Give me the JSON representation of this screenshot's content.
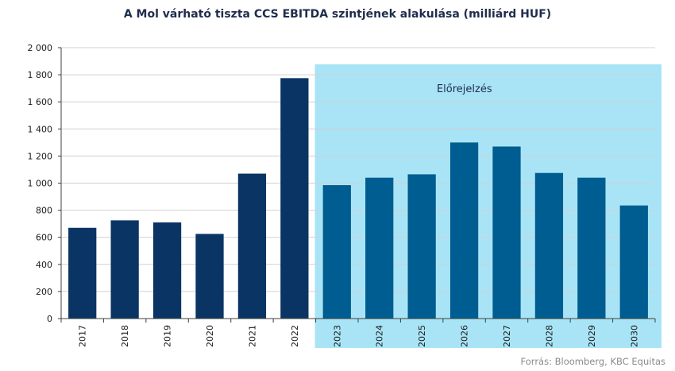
{
  "chart_data": {
    "type": "bar",
    "title": "A Mol várható tiszta CCS EBITDA szintjének alakulása (milliárd HUF)",
    "categories": [
      "2017",
      "2018",
      "2019",
      "2020",
      "2021",
      "2022",
      "2023",
      "2024",
      "2025",
      "2026",
      "2027",
      "2028",
      "2029",
      "2030"
    ],
    "values": [
      670,
      725,
      710,
      625,
      1070,
      1775,
      985,
      1040,
      1065,
      1300,
      1270,
      1075,
      1040,
      835
    ],
    "ylim": [
      0,
      2000
    ],
    "yticks": [
      0,
      200,
      400,
      600,
      800,
      1000,
      1200,
      1400,
      1600,
      1800,
      2000
    ],
    "ytick_labels": [
      "0",
      "200",
      "400",
      "600",
      "800",
      "1 000",
      "1 200",
      "1 400",
      "1 600",
      "1 800",
      "2 000"
    ],
    "grid": true,
    "forecast_start_index": 6,
    "forecast_label": "Előrejelzés",
    "colors": {
      "actual_bar": "#0a3463",
      "forecast_bar": "#005d91",
      "forecast_band": "#a9e4f6",
      "grid": "#d0d0d0",
      "axis": "#404040"
    }
  },
  "source_note": "Forrás: Bloomberg, KBC Equitas"
}
